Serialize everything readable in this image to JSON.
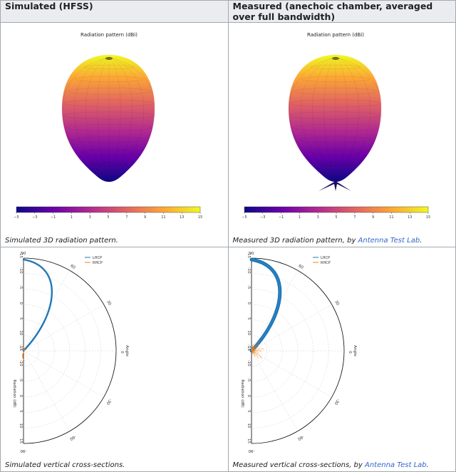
{
  "headers": {
    "simulated": "Simulated (HFSS)",
    "measured": "Measured (anechoic chamber, averaged over full bandwidth)"
  },
  "pattern3d": {
    "title": "Radiation pattern (dBi)",
    "colorbar_ticks": [
      "−5",
      "−3",
      "−1",
      "1",
      "3",
      "5",
      "7",
      "9",
      "11",
      "13",
      "15"
    ],
    "colormap": "plasma"
  },
  "captions": {
    "sim3d": "Simulated 3D radiation pattern.",
    "meas3d_prefix": "Measured 3D radiation pattern, by ",
    "meas3d_link": "Antenna Test Lab",
    "meas3d_suffix": ".",
    "simcross": "Simulated vertical cross-sections.",
    "meascross_prefix": "Measured vertical cross-sections, by ",
    "meascross_link": "Antenna Test Lab",
    "meascross_suffix": "."
  },
  "polar": {
    "legend": [
      "LHCP",
      "RHCP"
    ],
    "angle_label": "Angle",
    "radius_label": "Radiation (dB)",
    "angle_ticks": [
      "90",
      "60",
      "30",
      "0",
      "-30",
      "-60",
      "-90"
    ],
    "radius_ticks_top": [
      "-15",
      "-10",
      "-5",
      "0",
      "5",
      "10",
      "15"
    ],
    "radius_ticks_bottom": [
      "-15",
      "-10",
      "-5",
      "0",
      "5",
      "10",
      "15"
    ],
    "series_colors": {
      "LHCP": "#1f77b4",
      "RHCP": "#ff7f0e"
    }
  }
}
